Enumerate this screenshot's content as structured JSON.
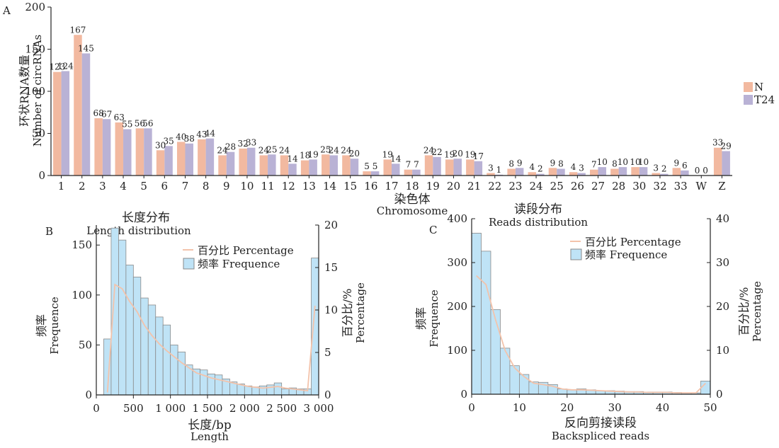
{
  "colors": {
    "n": "#f2b9a0",
    "t24": "#b9b2d5",
    "freq": "#bfe3f6",
    "freq_edge": "#8a8a8a",
    "pct": "#f3c3ab"
  },
  "chart_data": [
    {
      "type": "bar",
      "panel": "A",
      "xlabel_cn": "染色体",
      "xlabel_en": "Chromosome",
      "ylabel_cn": "环状RNA数量",
      "ylabel_en": "Number of circRNAs",
      "ylim": [
        0,
        200
      ],
      "yticks": [
        "0",
        "50",
        "100",
        "150",
        "200"
      ],
      "categories": [
        "1",
        "2",
        "3",
        "4",
        "5",
        "6",
        "7",
        "8",
        "9",
        "10",
        "11",
        "12",
        "13",
        "14",
        "15",
        "16",
        "17",
        "18",
        "19",
        "20",
        "21",
        "22",
        "23",
        "24",
        "25",
        "26",
        "27",
        "28",
        "30",
        "32",
        "33",
        "W",
        "Z"
      ],
      "series": [
        {
          "name": "N",
          "values": [
            123,
            167,
            68,
            63,
            56,
            30,
            40,
            43,
            24,
            32,
            24,
            24,
            18,
            25,
            24,
            5,
            19,
            7,
            24,
            19,
            19,
            3,
            8,
            4,
            9,
            4,
            7,
            8,
            10,
            3,
            9,
            0,
            33
          ]
        },
        {
          "name": "T24",
          "values": [
            124,
            145,
            67,
            55,
            56,
            35,
            38,
            44,
            28,
            33,
            25,
            14,
            19,
            24,
            20,
            5,
            14,
            7,
            22,
            20,
            17,
            1,
            9,
            2,
            8,
            3,
            10,
            10,
            10,
            2,
            6,
            0,
            29
          ]
        }
      ],
      "legend": "right"
    },
    {
      "type": "bar",
      "panel": "B",
      "title_cn": "长度分布",
      "title_en": "Length distribution",
      "xlabel_cn": "长度/bp",
      "xlabel_en": "Length",
      "ylabel_cn": "频率",
      "ylabel_en": "Frequence",
      "y2label_cn": "百分比/%",
      "y2label_en": "Percentage",
      "xlim": [
        0,
        3000
      ],
      "xticks": [
        "0",
        "500",
        "1 000",
        "1 500",
        "2 000",
        "2 500",
        "3 000"
      ],
      "ylim": [
        0,
        170
      ],
      "yticks": [
        "0",
        "50",
        "100",
        "150"
      ],
      "y2lim": [
        0,
        20
      ],
      "y2ticks": [
        "0",
        "5",
        "10",
        "15",
        "20"
      ],
      "bin_start": 100,
      "bin_width": 100,
      "freq": [
        56,
        167,
        155,
        130,
        118,
        97,
        90,
        78,
        70,
        50,
        43,
        30,
        26,
        25,
        21,
        20,
        16,
        13,
        11,
        9,
        8,
        9,
        10,
        12,
        6,
        7,
        6,
        6,
        137
      ],
      "pct": [
        0.3,
        13.0,
        12.5,
        11.0,
        9.8,
        8.2,
        7.0,
        6.0,
        5.2,
        4.5,
        3.8,
        3.2,
        2.6,
        2.3,
        2.0,
        1.8,
        1.6,
        1.4,
        1.2,
        1.0,
        0.9,
        0.8,
        0.9,
        1.0,
        0.8,
        0.7,
        0.6,
        0.5,
        10.5
      ],
      "legend_pct": "百分比 Percentage",
      "legend_freq": "频率 Frequence",
      "legend": "top-right"
    },
    {
      "type": "bar",
      "panel": "C",
      "title_cn": "读段分布",
      "title_en": "Reads distribution",
      "xlabel_cn": "反向剪接读段",
      "xlabel_en": "Backspliced reads",
      "ylabel_cn": "频率",
      "ylabel_en": "Frequence",
      "y2label_cn": "百分比/%",
      "y2label_en": "Percentage",
      "xlim": [
        0,
        50
      ],
      "xticks": [
        "0",
        "10",
        "20",
        "30",
        "40",
        "50"
      ],
      "ylim": [
        0,
        400
      ],
      "yticks": [
        "0",
        "100",
        "200",
        "300",
        "400"
      ],
      "y2lim": [
        0,
        40
      ],
      "y2ticks": [
        "0",
        "10",
        "20",
        "30",
        "40"
      ],
      "bin_start": 0,
      "bin_width": 2,
      "freq": [
        367,
        326,
        193,
        105,
        65,
        45,
        28,
        27,
        22,
        12,
        10,
        12,
        10,
        8,
        8,
        7,
        6,
        6,
        5,
        5,
        5,
        4,
        3,
        3,
        30
      ],
      "pct": [
        27,
        25,
        17,
        10,
        6,
        4,
        2.5,
        2.2,
        1.8,
        1.2,
        1.0,
        1.0,
        0.9,
        0.8,
        0.7,
        0.6,
        0.5,
        0.5,
        0.4,
        0.4,
        0.4,
        0.3,
        0.3,
        0.3,
        2.5
      ],
      "legend_pct": "百分比 Percentage",
      "legend_freq": "频率 Frequence",
      "legend": "top-right"
    }
  ]
}
